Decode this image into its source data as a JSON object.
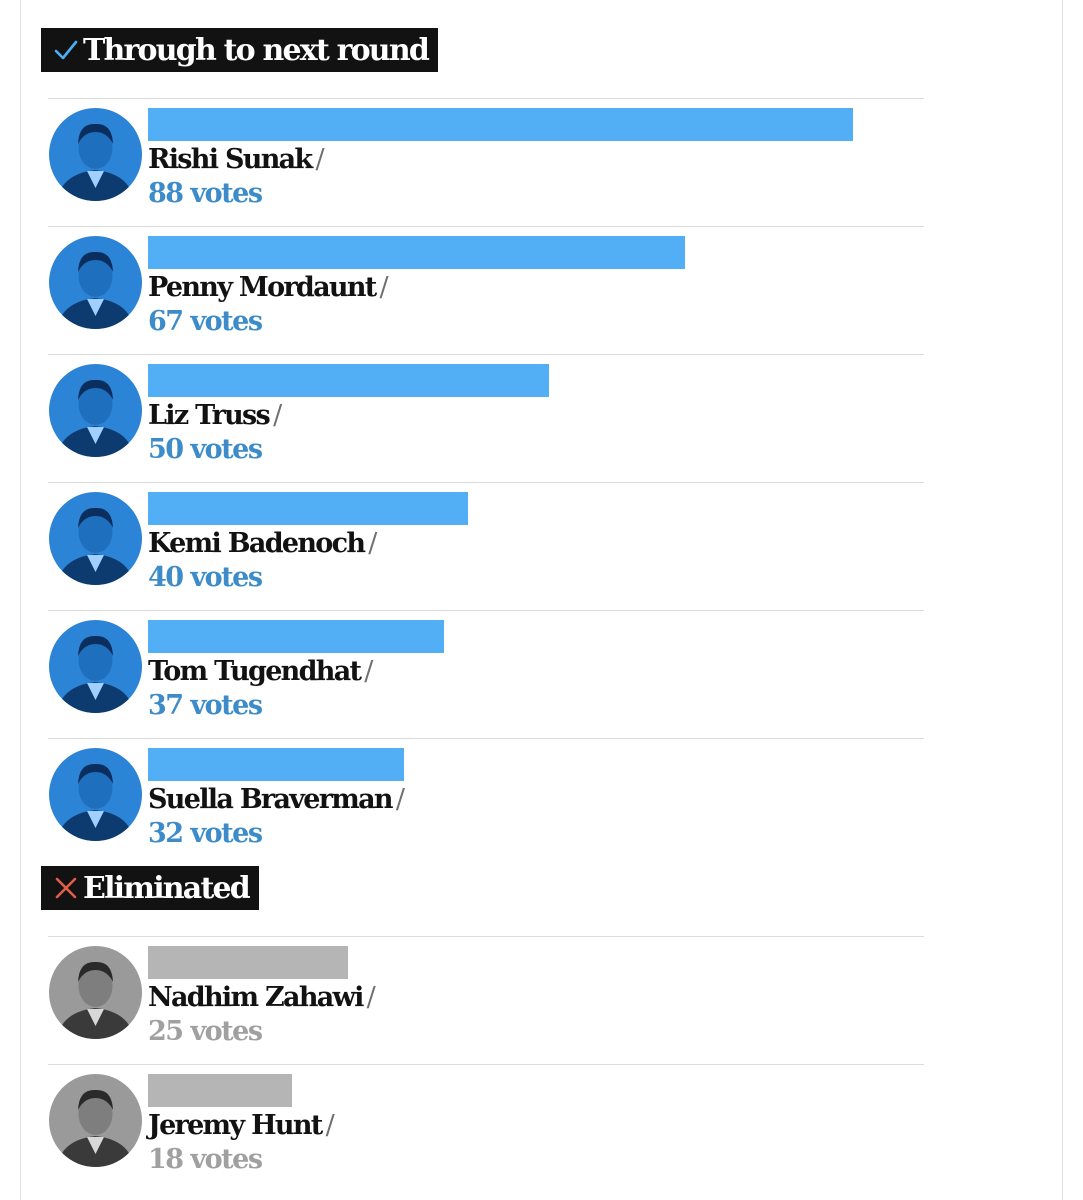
{
  "sections": {
    "through": {
      "label": "Through to next round",
      "icon": "checkmark-icon",
      "icon_color": "#4eaef5"
    },
    "eliminated": {
      "label": "Eliminated",
      "icon": "cross-icon",
      "icon_color": "#e05e4a"
    }
  },
  "vote_suffix": "votes",
  "separator": "/",
  "colors": {
    "through_bar": "#52aef5",
    "through_votes": "#3d8cc9",
    "eliminated_bar": "#b5b5b5",
    "eliminated_votes": "#a0a0a0",
    "through_avatar_bg": "#2b84d6",
    "eliminated_avatar_bg": "#9a9a9a"
  },
  "chart_data": {
    "type": "bar",
    "orientation": "horizontal",
    "title": "",
    "xlabel": "",
    "ylabel": "",
    "categories": [
      "Rishi Sunak",
      "Penny Mordaunt",
      "Liz Truss",
      "Kemi Badenoch",
      "Tom Tugendhat",
      "Suella Braverman",
      "Nadhim Zahawi",
      "Jeremy Hunt"
    ],
    "values": [
      88,
      67,
      50,
      40,
      37,
      32,
      25,
      18
    ],
    "value_labels": [
      "88 votes",
      "67 votes",
      "50 votes",
      "40 votes",
      "37 votes",
      "32 votes",
      "25 votes",
      "18 votes"
    ],
    "status": [
      "through",
      "through",
      "through",
      "through",
      "through",
      "through",
      "eliminated",
      "eliminated"
    ],
    "grid": false,
    "legend": "none"
  }
}
